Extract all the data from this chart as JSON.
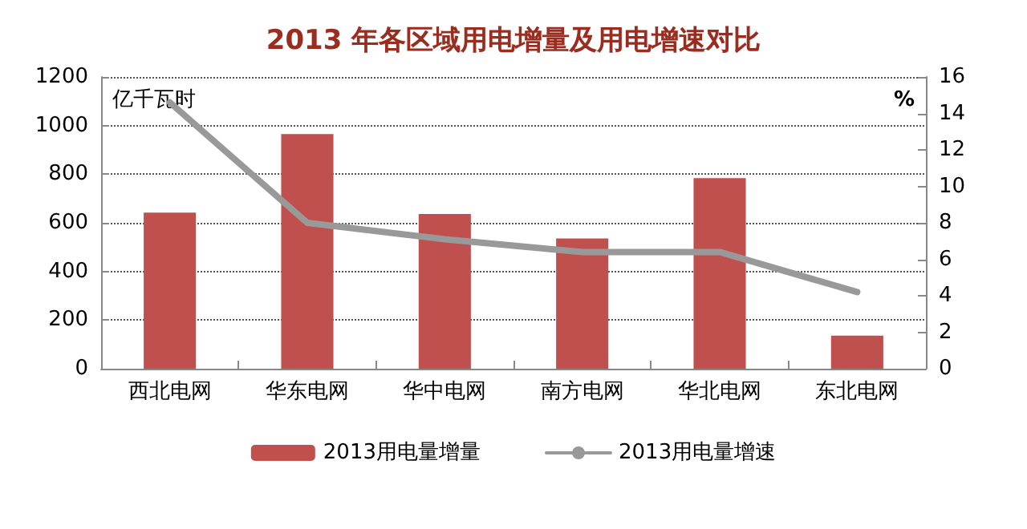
{
  "chart_data": {
    "type": "bar",
    "title": "2013 年各区域用电增量及用电增速对比",
    "ylabel": "亿千瓦时",
    "y2label": "%",
    "categories": [
      "西北电网",
      "华东电网",
      "华中电网",
      "南方电网",
      "华北电网",
      "东北电网"
    ],
    "series": [
      {
        "name": "2013用电量增量",
        "color": "#c0504d",
        "values": [
          642,
          965,
          636,
          536,
          784,
          136
        ]
      },
      {
        "name": "2013用电量增速",
        "type": "line",
        "axis": "y2",
        "color": "#999999",
        "values": [
          14.6,
          8.0,
          7.1,
          6.4,
          6.4,
          4.2
        ]
      }
    ],
    "ylim": [
      0,
      1200
    ],
    "yticks": [
      0,
      200,
      400,
      600,
      800,
      1000,
      1200
    ],
    "y2lim": [
      0,
      16
    ],
    "y2ticks": [
      0,
      2,
      4,
      6,
      8,
      10,
      12,
      14,
      16
    ],
    "grid": "y",
    "legend": "bottom",
    "marker": "none",
    "line_style": "solid"
  }
}
